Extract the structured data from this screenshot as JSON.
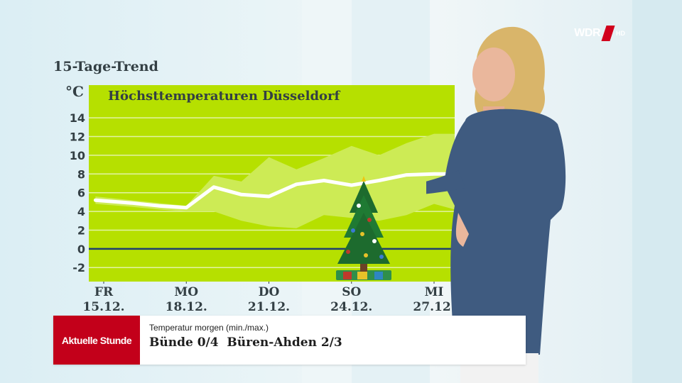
{
  "broadcaster": {
    "name": "WDR",
    "quality": "HD"
  },
  "header": {
    "trend_title": "15-Tage-Trend"
  },
  "chart_data": {
    "type": "line",
    "title": "Höchsttemperaturen Düsseldorf",
    "unit_label": "°C",
    "ylim": [
      -3.5,
      17.5
    ],
    "yticks": [
      14,
      12,
      10,
      8,
      6,
      4,
      2,
      0,
      -2
    ],
    "grid": true,
    "x_labels": [
      {
        "day": "FR",
        "date": "15.12."
      },
      {
        "day": "MO",
        "date": "18.12."
      },
      {
        "day": "DO",
        "date": "21.12."
      },
      {
        "day": "SO",
        "date": "24.12."
      },
      {
        "day": "MI",
        "date": "27.12."
      }
    ],
    "x_label_days": [
      0,
      3,
      6,
      9,
      12
    ],
    "x_days": [
      -0.3,
      1,
      2,
      3,
      4,
      5,
      6,
      7,
      8,
      9,
      10,
      11,
      12,
      13
    ],
    "series": [
      {
        "values": [
          5.2,
          4.9,
          4.6,
          4.4,
          6.6,
          5.8,
          5.6,
          6.9,
          7.3,
          6.8,
          7.3,
          7.9,
          8.0,
          8.0
        ]
      }
    ],
    "band_upper": [
      5.6,
      5.2,
      4.9,
      4.6,
      7.8,
      7.2,
      9.8,
      8.5,
      9.7,
      11.0,
      10.0,
      11.3,
      12.3,
      12.3
    ],
    "band_lower": [
      4.8,
      4.5,
      4.2,
      4.0,
      4.0,
      3.0,
      2.4,
      2.2,
      3.6,
      3.3,
      3.0,
      3.6,
      4.8,
      4.2
    ],
    "colors": {
      "plot_bg": "#b6e000",
      "band": "#cdeb55",
      "line": "#ffffff",
      "zero_line": "#1e3f6e",
      "grid": "#e2f3a4",
      "axis_text": "#333f44"
    }
  },
  "lower_third": {
    "show_name": "Aktuelle Stunde",
    "line1": "Temperatur morgen (min./max.)",
    "line2": "Bünde 0/4  Büren-Ahden 2/3"
  }
}
